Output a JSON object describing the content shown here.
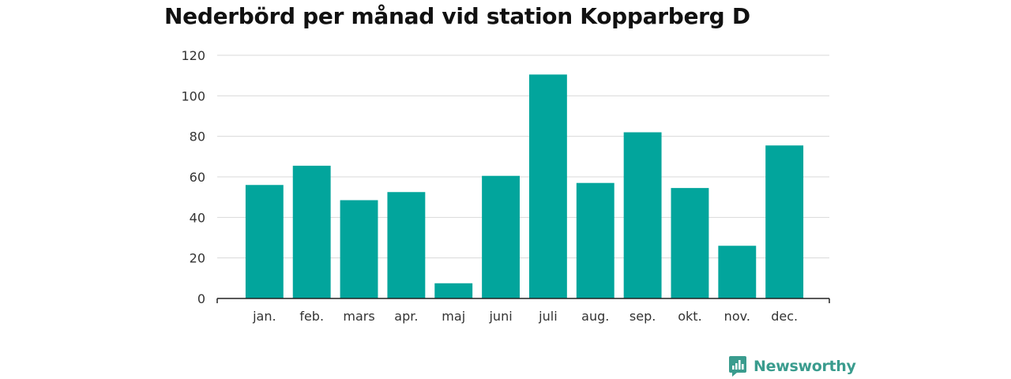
{
  "chart_data": {
    "type": "bar",
    "title": "Nederbörd per månad vid station Kopparberg D",
    "xlabel": "",
    "ylabel": "",
    "categories": [
      "jan.",
      "feb.",
      "mars",
      "apr.",
      "maj",
      "juni",
      "juli",
      "aug.",
      "sep.",
      "okt.",
      "nov.",
      "dec."
    ],
    "values": [
      56,
      65.5,
      48.5,
      52.5,
      7.5,
      60.5,
      110.5,
      57,
      82,
      54.5,
      26,
      75.5
    ],
    "ylim": [
      0,
      120
    ],
    "yticks": [
      "0",
      "20",
      "40",
      "60",
      "80",
      "100",
      "120"
    ],
    "grid": true,
    "bar_color": "#02a59c"
  },
  "brand": {
    "name": "Newsworthy",
    "icon": "bar-chart-speech-icon",
    "color": "#3a9c8e"
  }
}
